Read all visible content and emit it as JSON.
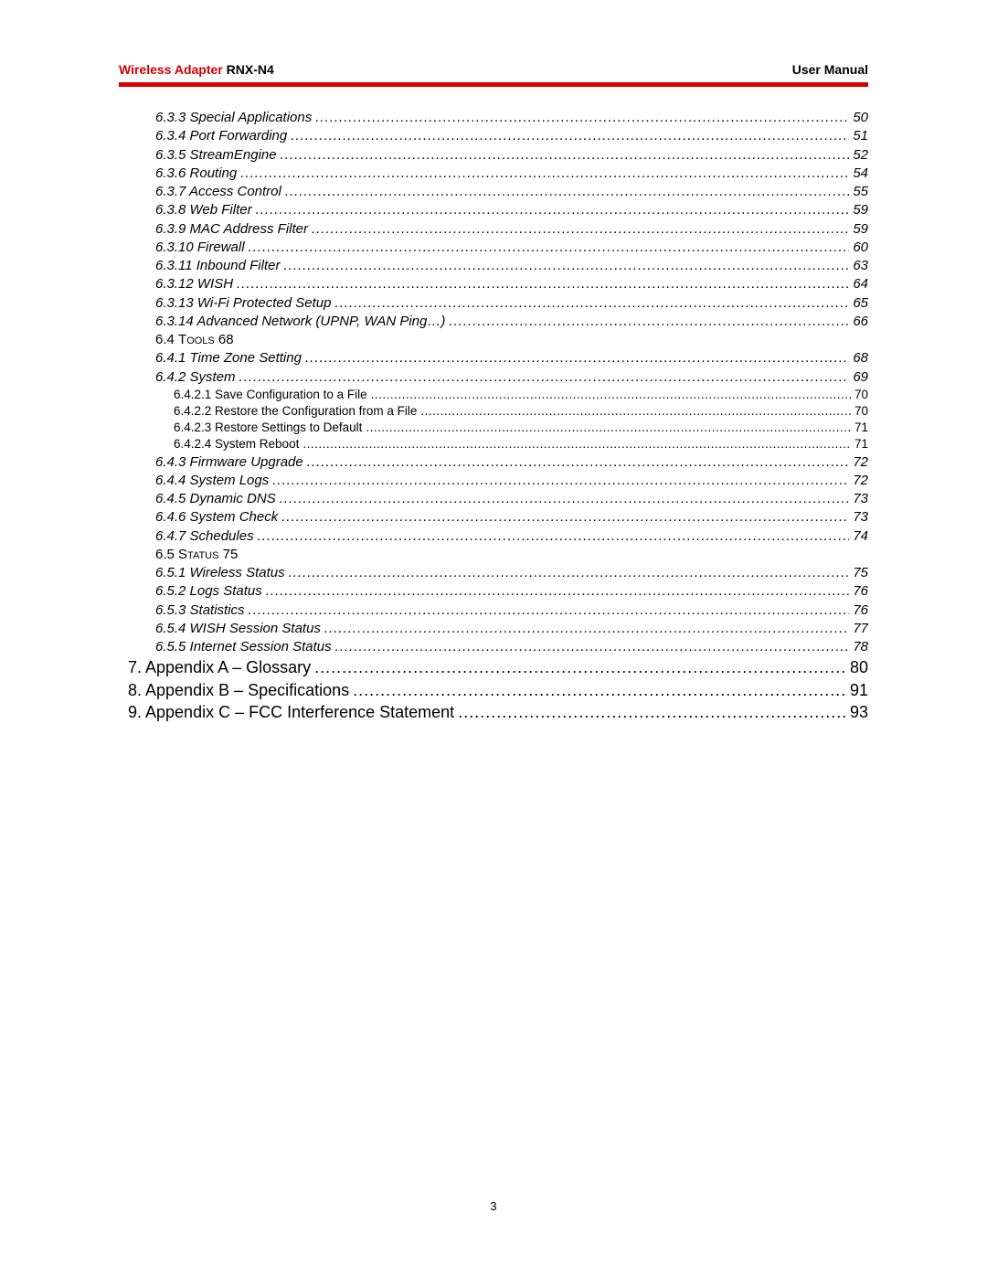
{
  "header": {
    "left_red": "Wireless Adapter",
    "left_black": " RNX-N4",
    "right": "User Manual"
  },
  "colors": {
    "accent": "#d30000",
    "text": "#000000",
    "bg": "#ffffff"
  },
  "toc": [
    {
      "level": "sub-italic",
      "num": "6.3.3",
      "title": "Special Applications",
      "page": "50"
    },
    {
      "level": "sub-italic",
      "num": "6.3.4",
      "title": "Port Forwarding",
      "page": "51"
    },
    {
      "level": "sub-italic",
      "num": "6.3.5",
      "title": "StreamEngine",
      "page": "52"
    },
    {
      "level": "sub-italic",
      "num": "6.3.6",
      "title": "Routing",
      "page": "54"
    },
    {
      "level": "sub-italic",
      "num": "6.3.7",
      "title": "Access Control",
      "page": "55"
    },
    {
      "level": "sub-italic",
      "num": "6.3.8",
      "title": "Web Filter",
      "page": "59"
    },
    {
      "level": "sub-italic",
      "num": "6.3.9",
      "title": "MAC Address Filter",
      "page": "59"
    },
    {
      "level": "sub-italic",
      "num": "6.3.10",
      "title": "Firewall",
      "page": "60"
    },
    {
      "level": "sub-italic",
      "num": "6.3.11",
      "title": "Inbound Filter",
      "page": "63"
    },
    {
      "level": "sub-italic",
      "num": "6.3.12",
      "title": "WISH",
      "page": "64"
    },
    {
      "level": "sub-italic",
      "num": "6.3.13",
      "title": "Wi-Fi Protected Setup",
      "page": "65"
    },
    {
      "level": "sub-italic",
      "num": "6.3.14",
      "title": "Advanced Network (UPNP, WAN Ping…)",
      "page": "66"
    },
    {
      "level": "section",
      "num": "6.4",
      "title": "Tools",
      "inline_page": "68"
    },
    {
      "level": "sub-italic",
      "num": "6.4.1",
      "title": "Time Zone Setting",
      "page": "68"
    },
    {
      "level": "sub-italic",
      "num": "6.4.2",
      "title": "System",
      "page": "69"
    },
    {
      "level": "subsub",
      "num": "6.4.2.1",
      "title": "Save Configuration to a File",
      "page": "70"
    },
    {
      "level": "subsub",
      "num": "6.4.2.2",
      "title": "Restore the Configuration from a File",
      "page": "70"
    },
    {
      "level": "subsub",
      "num": "6.4.2.3",
      "title": "Restore Settings to Default",
      "page": "71"
    },
    {
      "level": "subsub",
      "num": "6.4.2.4",
      "title": "System Reboot",
      "page": "71"
    },
    {
      "level": "sub-italic",
      "num": "6.4.3",
      "title": "Firmware Upgrade",
      "page": "72"
    },
    {
      "level": "sub-italic",
      "num": "6.4.4",
      "title": "System Logs",
      "page": "72"
    },
    {
      "level": "sub-italic",
      "num": "6.4.5",
      "title": "Dynamic DNS",
      "page": "73"
    },
    {
      "level": "sub-italic",
      "num": "6.4.6",
      "title": "System Check",
      "page": "73"
    },
    {
      "level": "sub-italic",
      "num": "6.4.7",
      "title": "Schedules",
      "page": "74"
    },
    {
      "level": "section",
      "num": "6.5",
      "title": "Status",
      "inline_page": "75"
    },
    {
      "level": "sub-italic",
      "num": "6.5.1",
      "title": "Wireless Status",
      "page": "75"
    },
    {
      "level": "sub-italic",
      "num": "6.5.2",
      "title": "Logs Status",
      "page": "76"
    },
    {
      "level": "sub-italic",
      "num": "6.5.3",
      "title": "Statistics",
      "page": "76"
    },
    {
      "level": "sub-italic",
      "num": "6.5.4",
      "title": "WISH Session Status",
      "page": "77"
    },
    {
      "level": "sub-italic",
      "num": "6.5.5",
      "title": "Internet Session Status",
      "page": "78"
    },
    {
      "level": "chapter",
      "num": "7.",
      "title": "Appendix A – Glossary",
      "page": "80"
    },
    {
      "level": "chapter",
      "num": "8.",
      "title": "Appendix B – Specifications",
      "page": "91"
    },
    {
      "level": "chapter",
      "num": "9.",
      "title": "Appendix C – FCC Interference Statement",
      "page": "93"
    }
  ],
  "footer_page": "3"
}
